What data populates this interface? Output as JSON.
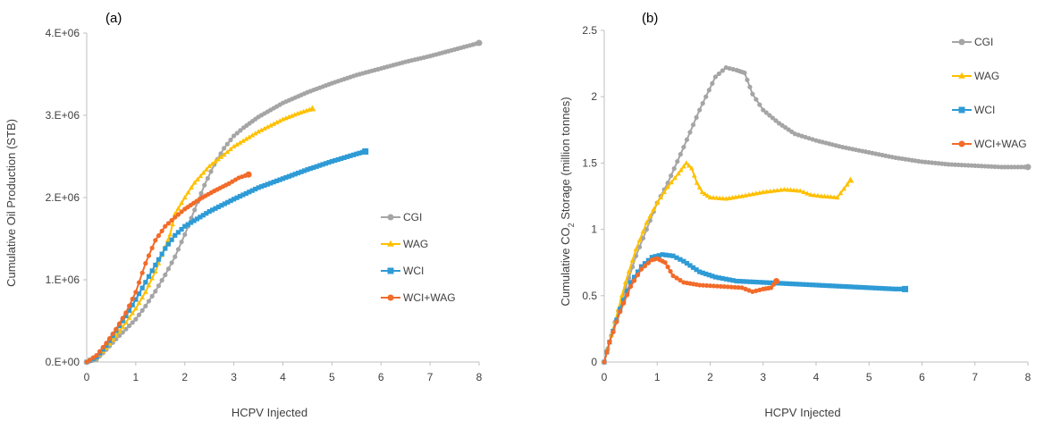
{
  "chart_data": [
    {
      "type": "line",
      "panel_label": "(a)",
      "xlabel": "HCPV Injected",
      "ylabel": "Cumulative Oil Production (STB)",
      "xlim": [
        0,
        8
      ],
      "ylim": [
        0,
        4000000
      ],
      "xticks": [
        "0",
        "1",
        "2",
        "3",
        "4",
        "5",
        "6",
        "7",
        "8"
      ],
      "yticks": [
        {
          "value": 0,
          "label": "0.E+00"
        },
        {
          "value": 1000000,
          "label": "1.E+06"
        },
        {
          "value": 2000000,
          "label": "2.E+06"
        },
        {
          "value": 3000000,
          "label": "3.E+06"
        },
        {
          "value": 4000000,
          "label": "4.E+06"
        }
      ],
      "legend_position": "right",
      "series": [
        {
          "name": "CGI",
          "color": "#a5a5a5",
          "marker": "circle",
          "points": [
            [
              0,
              0
            ],
            [
              0.2,
              30000
            ],
            [
              0.4,
              150000
            ],
            [
              0.6,
              280000
            ],
            [
              0.8,
              400000
            ],
            [
              1.0,
              520000
            ],
            [
              1.2,
              680000
            ],
            [
              1.4,
              860000
            ],
            [
              1.6,
              1060000
            ],
            [
              1.8,
              1280000
            ],
            [
              2.0,
              1550000
            ],
            [
              2.2,
              1850000
            ],
            [
              2.4,
              2150000
            ],
            [
              2.6,
              2400000
            ],
            [
              2.8,
              2600000
            ],
            [
              3.0,
              2750000
            ],
            [
              3.2,
              2850000
            ],
            [
              3.5,
              2980000
            ],
            [
              4.0,
              3150000
            ],
            [
              4.5,
              3280000
            ],
            [
              5.0,
              3390000
            ],
            [
              5.5,
              3490000
            ],
            [
              6.0,
              3570000
            ],
            [
              6.5,
              3650000
            ],
            [
              7.0,
              3720000
            ],
            [
              7.5,
              3800000
            ],
            [
              8.0,
              3880000
            ]
          ]
        },
        {
          "name": "WAG",
          "color": "#ffc000",
          "marker": "triangle",
          "points": [
            [
              0,
              0
            ],
            [
              0.2,
              50000
            ],
            [
              0.4,
              170000
            ],
            [
              0.6,
              320000
            ],
            [
              0.8,
              480000
            ],
            [
              1.0,
              650000
            ],
            [
              1.2,
              850000
            ],
            [
              1.4,
              1100000
            ],
            [
              1.6,
              1400000
            ],
            [
              1.7,
              1550000
            ],
            [
              1.8,
              1800000
            ],
            [
              2.0,
              2000000
            ],
            [
              2.2,
              2180000
            ],
            [
              2.5,
              2380000
            ],
            [
              2.8,
              2520000
            ],
            [
              3.0,
              2620000
            ],
            [
              3.5,
              2800000
            ],
            [
              4.0,
              2950000
            ],
            [
              4.3,
              3020000
            ],
            [
              4.6,
              3080000
            ]
          ]
        },
        {
          "name": "WCI",
          "color": "#2e9bd6",
          "marker": "square",
          "points": [
            [
              0,
              0
            ],
            [
              0.2,
              60000
            ],
            [
              0.4,
              200000
            ],
            [
              0.6,
              380000
            ],
            [
              0.8,
              560000
            ],
            [
              1.0,
              760000
            ],
            [
              1.2,
              970000
            ],
            [
              1.4,
              1180000
            ],
            [
              1.6,
              1380000
            ],
            [
              1.8,
              1540000
            ],
            [
              2.0,
              1650000
            ],
            [
              2.5,
              1830000
            ],
            [
              3.0,
              1980000
            ],
            [
              3.5,
              2120000
            ],
            [
              4.0,
              2230000
            ],
            [
              4.5,
              2340000
            ],
            [
              5.0,
              2440000
            ],
            [
              5.5,
              2530000
            ],
            [
              5.68,
              2560000
            ]
          ]
        },
        {
          "name": "WCI+WAG",
          "color": "#f26b29",
          "marker": "circle",
          "points": [
            [
              0,
              0
            ],
            [
              0.2,
              80000
            ],
            [
              0.4,
              230000
            ],
            [
              0.6,
              400000
            ],
            [
              0.8,
              600000
            ],
            [
              1.0,
              850000
            ],
            [
              1.2,
              1200000
            ],
            [
              1.4,
              1480000
            ],
            [
              1.6,
              1650000
            ],
            [
              1.8,
              1760000
            ],
            [
              2.0,
              1860000
            ],
            [
              2.3,
              1980000
            ],
            [
              2.6,
              2080000
            ],
            [
              2.9,
              2170000
            ],
            [
              3.1,
              2240000
            ],
            [
              3.3,
              2280000
            ]
          ]
        }
      ]
    },
    {
      "type": "line",
      "panel_label": "(b)",
      "xlabel": "HCPV Injected",
      "ylabel_main": "Cumulative CO",
      "ylabel_sub": "2",
      "ylabel_rest": " Storage (million tonnes)",
      "xlim": [
        0,
        8
      ],
      "ylim": [
        0,
        2.5
      ],
      "xticks": [
        "0",
        "1",
        "2",
        "3",
        "4",
        "5",
        "6",
        "7",
        "8"
      ],
      "yticks": [
        {
          "value": 0,
          "label": "0"
        },
        {
          "value": 0.5,
          "label": "0.5"
        },
        {
          "value": 1,
          "label": "1"
        },
        {
          "value": 1.5,
          "label": "1.5"
        },
        {
          "value": 2,
          "label": "2"
        },
        {
          "value": 2.5,
          "label": "2.5"
        }
      ],
      "legend_position": "top-right",
      "series": [
        {
          "name": "CGI",
          "color": "#a5a5a5",
          "marker": "circle",
          "points": [
            [
              0,
              0
            ],
            [
              0.2,
              0.3
            ],
            [
              0.4,
              0.55
            ],
            [
              0.6,
              0.8
            ],
            [
              0.8,
              1.0
            ],
            [
              1.0,
              1.2
            ],
            [
              1.2,
              1.35
            ],
            [
              1.5,
              1.62
            ],
            [
              1.8,
              1.9
            ],
            [
              2.1,
              2.15
            ],
            [
              2.3,
              2.22
            ],
            [
              2.5,
              2.2
            ],
            [
              2.65,
              2.18
            ],
            [
              2.8,
              2.02
            ],
            [
              3.0,
              1.9
            ],
            [
              3.3,
              1.8
            ],
            [
              3.6,
              1.72
            ],
            [
              4.0,
              1.67
            ],
            [
              4.5,
              1.62
            ],
            [
              5.0,
              1.58
            ],
            [
              5.5,
              1.54
            ],
            [
              6.0,
              1.51
            ],
            [
              6.5,
              1.49
            ],
            [
              7.0,
              1.48
            ],
            [
              7.5,
              1.47
            ],
            [
              8.0,
              1.47
            ]
          ]
        },
        {
          "name": "WAG",
          "color": "#ffc000",
          "marker": "triangle",
          "points": [
            [
              0,
              0
            ],
            [
              0.2,
              0.3
            ],
            [
              0.4,
              0.6
            ],
            [
              0.6,
              0.85
            ],
            [
              0.8,
              1.05
            ],
            [
              1.0,
              1.2
            ],
            [
              1.2,
              1.32
            ],
            [
              1.4,
              1.42
            ],
            [
              1.55,
              1.5
            ],
            [
              1.65,
              1.46
            ],
            [
              1.75,
              1.35
            ],
            [
              1.85,
              1.28
            ],
            [
              2.0,
              1.24
            ],
            [
              2.3,
              1.23
            ],
            [
              2.6,
              1.25
            ],
            [
              3.0,
              1.28
            ],
            [
              3.4,
              1.3
            ],
            [
              3.7,
              1.29
            ],
            [
              3.9,
              1.26
            ],
            [
              4.1,
              1.25
            ],
            [
              4.4,
              1.24
            ],
            [
              4.65,
              1.37
            ]
          ]
        },
        {
          "name": "WCI",
          "color": "#2e9bd6",
          "marker": "square",
          "points": [
            [
              0,
              0
            ],
            [
              0.1,
              0.15
            ],
            [
              0.3,
              0.4
            ],
            [
              0.5,
              0.6
            ],
            [
              0.7,
              0.72
            ],
            [
              0.9,
              0.79
            ],
            [
              1.1,
              0.81
            ],
            [
              1.3,
              0.8
            ],
            [
              1.5,
              0.76
            ],
            [
              1.8,
              0.68
            ],
            [
              2.1,
              0.64
            ],
            [
              2.5,
              0.61
            ],
            [
              3.0,
              0.6
            ],
            [
              3.5,
              0.59
            ],
            [
              4.0,
              0.58
            ],
            [
              4.5,
              0.57
            ],
            [
              5.0,
              0.56
            ],
            [
              5.5,
              0.55
            ],
            [
              5.68,
              0.55
            ]
          ]
        },
        {
          "name": "WCI+WAG",
          "color": "#f26b29",
          "marker": "circle",
          "points": [
            [
              0,
              0
            ],
            [
              0.1,
              0.15
            ],
            [
              0.3,
              0.38
            ],
            [
              0.5,
              0.57
            ],
            [
              0.7,
              0.7
            ],
            [
              0.9,
              0.77
            ],
            [
              1.0,
              0.78
            ],
            [
              1.15,
              0.75
            ],
            [
              1.3,
              0.65
            ],
            [
              1.5,
              0.6
            ],
            [
              1.8,
              0.58
            ],
            [
              2.2,
              0.57
            ],
            [
              2.6,
              0.56
            ],
            [
              2.8,
              0.53
            ],
            [
              3.0,
              0.55
            ],
            [
              3.15,
              0.56
            ],
            [
              3.25,
              0.61
            ]
          ]
        }
      ]
    }
  ]
}
